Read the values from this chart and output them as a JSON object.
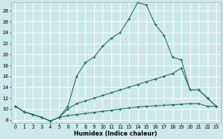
{
  "xlabel": "Humidex (Indice chaleur)",
  "bg_color": "#cce8e8",
  "grid_color": "#ffffff",
  "line_color": "#1a6b5a",
  "xlim": [
    -0.5,
    23.5
  ],
  "ylim": [
    7.5,
    29.5
  ],
  "xticks": [
    0,
    1,
    2,
    3,
    4,
    5,
    6,
    7,
    8,
    9,
    10,
    11,
    12,
    13,
    14,
    15,
    16,
    17,
    18,
    19,
    20,
    21,
    22,
    23
  ],
  "yticks": [
    8,
    10,
    12,
    14,
    16,
    18,
    20,
    22,
    24,
    26,
    28
  ],
  "curve1_x": [
    0,
    1,
    2,
    3,
    4,
    5,
    6,
    7,
    8,
    9,
    10,
    11,
    12,
    13,
    14,
    15,
    16,
    17,
    18,
    19,
    20,
    21,
    22,
    23
  ],
  "curve1_y": [
    10.5,
    9.5,
    9.0,
    8.5,
    7.8,
    8.5,
    10.5,
    16.0,
    18.5,
    19.5,
    21.5,
    23.0,
    24.0,
    26.5,
    29.5,
    29.0,
    25.5,
    23.5,
    19.5,
    19.0,
    13.5,
    13.5,
    12.0,
    10.5
  ],
  "curve2_x": [
    0,
    1,
    2,
    3,
    4,
    5,
    6,
    7,
    8,
    9,
    10,
    11,
    12,
    13,
    14,
    15,
    16,
    17,
    18,
    19,
    20,
    21,
    22,
    23
  ],
  "curve2_y": [
    10.5,
    9.5,
    9.0,
    8.5,
    7.8,
    8.5,
    10.0,
    11.0,
    11.5,
    12.0,
    12.5,
    13.0,
    13.5,
    14.0,
    14.5,
    15.0,
    15.5,
    16.0,
    16.5,
    17.5,
    13.5,
    13.5,
    12.0,
    10.5
  ],
  "curve3_x": [
    0,
    1,
    2,
    3,
    4,
    5,
    6,
    7,
    8,
    9,
    10,
    11,
    12,
    13,
    14,
    15,
    16,
    17,
    18,
    19,
    20,
    21,
    22,
    23
  ],
  "curve3_y": [
    10.5,
    9.5,
    9.0,
    8.5,
    7.8,
    8.5,
    8.8,
    9.0,
    9.2,
    9.4,
    9.6,
    9.8,
    10.0,
    10.2,
    10.4,
    10.5,
    10.6,
    10.7,
    10.8,
    10.9,
    11.0,
    11.0,
    10.5,
    10.5
  ]
}
